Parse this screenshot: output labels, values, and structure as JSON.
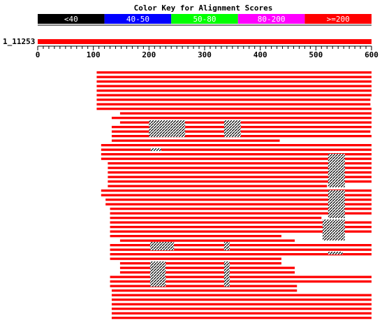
{
  "title": "Color Key for Alignment Scores",
  "color_key": [
    {
      "label": "<40",
      "color": "#000000"
    },
    {
      "label": "40-50",
      "color": "#0000ff"
    },
    {
      "label": "50-80",
      "color": "#00ff00"
    },
    {
      "label": "80-200",
      "color": "#ff00ff"
    },
    {
      "label": ">=200",
      "color": "#ff0000"
    }
  ],
  "query": {
    "name": "1_11253",
    "length": 600
  },
  "axis": {
    "ticks": [
      0,
      100,
      200,
      300,
      400,
      500,
      600
    ],
    "max": 600
  },
  "chart_data": {
    "type": "alignment-overview",
    "title": "Color Key for Alignment Scores",
    "query_name": "1_11253",
    "query_range": [
      0,
      600
    ],
    "hits": [
      [
        [
          106,
          600
        ]
      ],
      [
        [
          106,
          600
        ]
      ],
      [
        [
          106,
          600
        ]
      ],
      [
        [
          106,
          600
        ]
      ],
      [
        [
          106,
          600
        ]
      ],
      [
        [
          106,
          600
        ]
      ],
      [
        [
          106,
          598
        ]
      ],
      [
        [
          106,
          598
        ]
      ],
      [
        [
          106,
          600
        ]
      ],
      [
        [
          148,
          600
        ]
      ],
      [
        [
          133,
          600
        ]
      ],
      [
        [
          148,
          600
        ]
      ],
      [
        [
          133,
          600
        ]
      ],
      [
        [
          133,
          598
        ]
      ],
      [
        [
          133,
          600
        ]
      ],
      [
        [
          133,
          435
        ]
      ],
      [
        [
          114,
          600
        ]
      ],
      [
        [
          114,
          600
        ]
      ],
      [
        [
          114,
          600
        ]
      ],
      [
        [
          114,
          600
        ]
      ],
      [
        [
          126,
          600
        ]
      ],
      [
        [
          126,
          600
        ]
      ],
      [
        [
          126,
          600
        ]
      ],
      [
        [
          126,
          600
        ]
      ],
      [
        [
          126,
          600
        ]
      ],
      [
        [
          126,
          520
        ]
      ],
      [
        [
          114,
          600
        ]
      ],
      [
        [
          114,
          600
        ]
      ],
      [
        [
          122,
          600
        ]
      ],
      [
        [
          122,
          600
        ]
      ],
      [
        [
          130,
          600
        ]
      ],
      [
        [
          130,
          600
        ]
      ],
      [
        [
          130,
          510
        ]
      ],
      [
        [
          130,
          600
        ]
      ],
      [
        [
          130,
          600
        ]
      ],
      [
        [
          130,
          600
        ]
      ],
      [
        [
          130,
          438
        ]
      ],
      [
        [
          148,
          462
        ]
      ],
      [
        [
          130,
          600
        ]
      ],
      [
        [
          130,
          600
        ]
      ],
      [
        [
          130,
          600
        ]
      ],
      [
        [
          130,
          438
        ]
      ],
      [
        [
          148,
          438
        ]
      ],
      [
        [
          148,
          462
        ]
      ],
      [
        [
          148,
          462
        ]
      ],
      [
        [
          130,
          600
        ]
      ],
      [
        [
          130,
          600
        ]
      ],
      [
        [
          130,
          466
        ]
      ],
      [
        [
          133,
          466
        ]
      ],
      [
        [
          133,
          600
        ]
      ],
      [
        [
          133,
          600
        ]
      ],
      [
        [
          133,
          600
        ]
      ],
      [
        [
          133,
          600
        ]
      ],
      [
        [
          133,
          600
        ]
      ],
      [
        [
          133,
          600
        ]
      ]
    ]
  }
}
